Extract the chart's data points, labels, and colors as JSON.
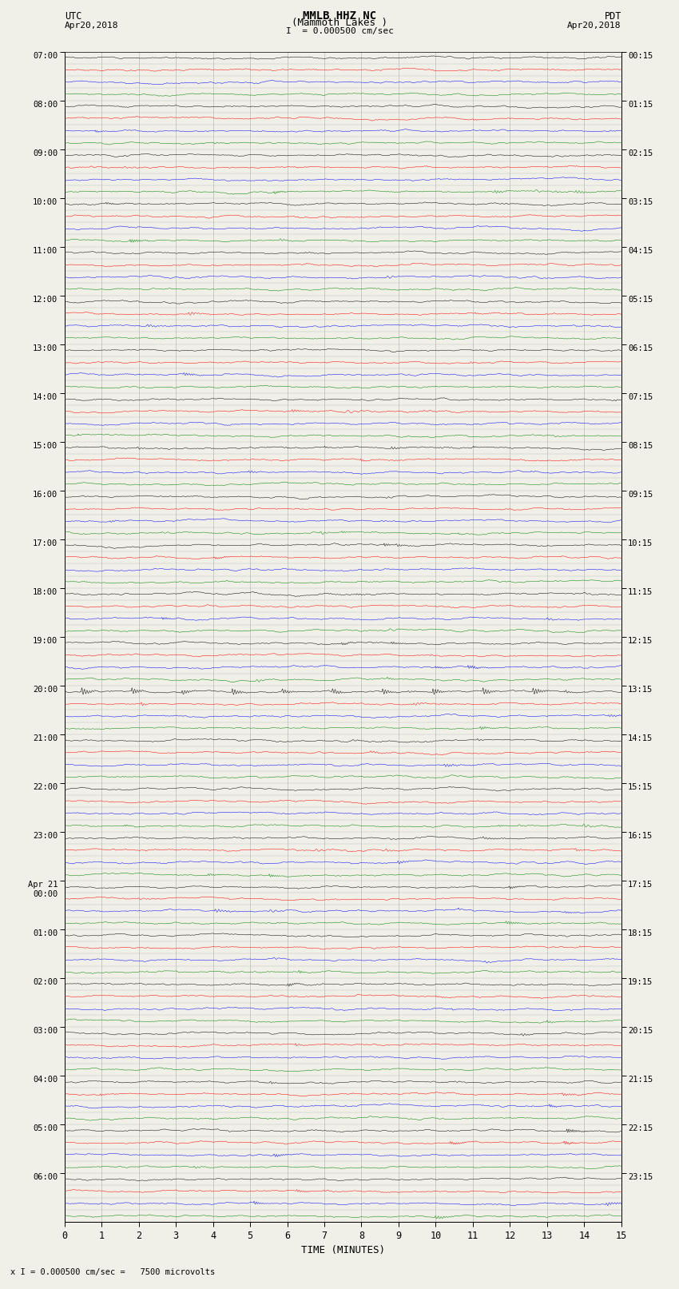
{
  "title_line1": "MMLB HHZ NC",
  "title_line2": "(Mammoth Lakes )",
  "title_line3": "I  = 0.000500 cm/sec",
  "left_label_top": "UTC",
  "left_label_date": "Apr20,2018",
  "right_label_top": "PDT",
  "right_label_date": "Apr20,2018",
  "bottom_label": "TIME (MINUTES)",
  "bottom_note": "x I = 0.000500 cm/sec =   7500 microvolts",
  "num_groups": 24,
  "traces_per_group": 4,
  "trace_colors": [
    "black",
    "red",
    "blue",
    "green"
  ],
  "background_color": "#f0f0e8",
  "grid_color": "#aaaaaa",
  "fig_width": 8.5,
  "fig_height": 16.13,
  "left_time_labels": [
    "07:00",
    "08:00",
    "09:00",
    "10:00",
    "11:00",
    "12:00",
    "13:00",
    "14:00",
    "15:00",
    "16:00",
    "17:00",
    "18:00",
    "19:00",
    "20:00",
    "21:00",
    "22:00",
    "23:00",
    "Apr 21\n00:00",
    "01:00",
    "02:00",
    "03:00",
    "04:00",
    "05:00",
    "06:00"
  ],
  "right_time_labels": [
    "00:15",
    "01:15",
    "02:15",
    "03:15",
    "04:15",
    "05:15",
    "06:15",
    "07:15",
    "08:15",
    "09:15",
    "10:15",
    "11:15",
    "12:15",
    "13:15",
    "14:15",
    "15:15",
    "16:15",
    "17:15",
    "18:15",
    "19:15",
    "20:15",
    "21:15",
    "22:15",
    "23:15"
  ]
}
